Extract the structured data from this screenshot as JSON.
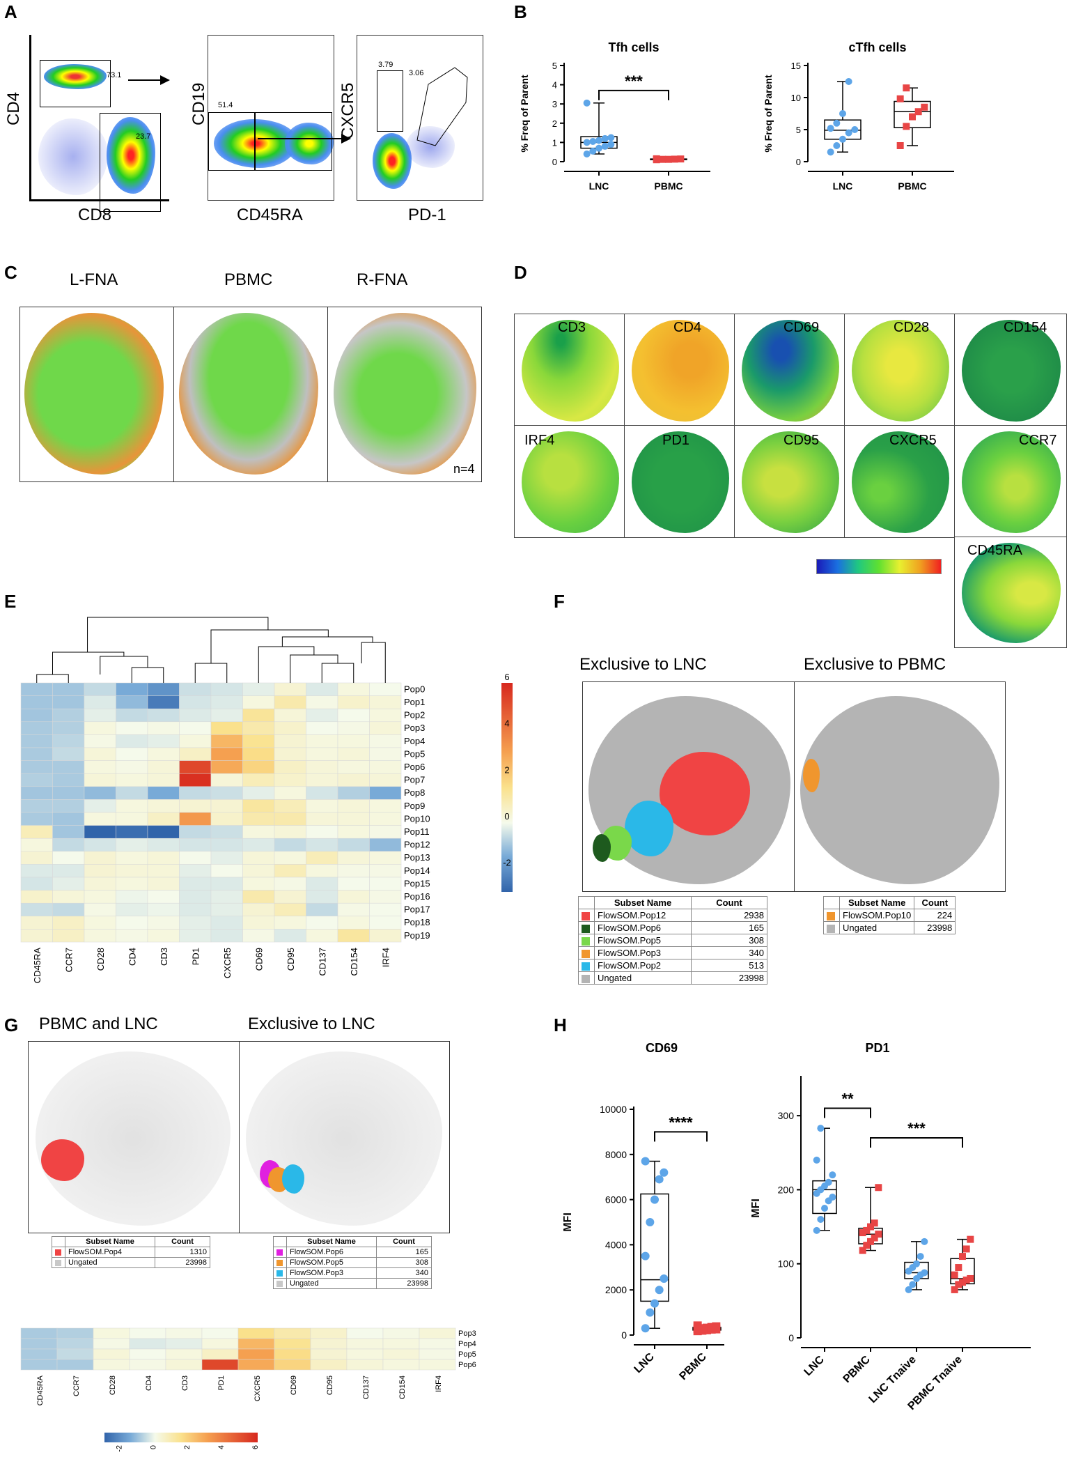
{
  "panels": {
    "A": "A",
    "B": "B",
    "C": "C",
    "D": "D",
    "E": "E",
    "F": "F",
    "G": "G",
    "H": "H"
  },
  "panelA": {
    "plots": [
      {
        "ylabel": "CD4",
        "xlabel": "CD8",
        "gates": [
          "73.1",
          "23.7"
        ]
      },
      {
        "ylabel": "CD19",
        "xlabel": "CD45RA",
        "gates": [
          "51.4"
        ]
      },
      {
        "ylabel": "CXCR5",
        "xlabel": "PD-1",
        "gates": [
          "3.79",
          "3.06"
        ]
      }
    ]
  },
  "panelC": {
    "columns": [
      "L-FNA",
      "PBMC",
      "R-FNA"
    ],
    "note": "n=4"
  },
  "panelD": {
    "markers": [
      "CD3",
      "CD4",
      "CD69",
      "CD28",
      "CD154",
      "IRF4",
      "PD1",
      "CD95",
      "CXCR5",
      "CCR7",
      "CD45RA"
    ]
  },
  "panelF": {
    "titles": [
      "Exclusive to LNC",
      "Exclusive to PBMC"
    ],
    "table_headers": [
      "Subset Name",
      "Count"
    ],
    "left_rows": [
      {
        "name": "FlowSOM.Pop12",
        "count": "2938",
        "color": "#f04444"
      },
      {
        "name": "FlowSOM.Pop6",
        "count": "165",
        "color": "#1e5a1e"
      },
      {
        "name": "FlowSOM.Pop5",
        "count": "308",
        "color": "#7ad84a"
      },
      {
        "name": "FlowSOM.Pop3",
        "count": "340",
        "color": "#f0962e"
      },
      {
        "name": "FlowSOM.Pop2",
        "count": "513",
        "color": "#2ab8e8"
      },
      {
        "name": "Ungated",
        "count": "23998",
        "color": "#b4b4b4"
      }
    ],
    "right_rows": [
      {
        "name": "FlowSOM.Pop10",
        "count": "224",
        "color": "#f0962e"
      },
      {
        "name": "Ungated",
        "count": "23998",
        "color": "#b4b4b4"
      }
    ]
  },
  "panelG": {
    "titles": [
      "PBMC and LNC",
      "Exclusive to LNC"
    ],
    "table_headers": [
      "Subset Name",
      "Count"
    ],
    "left_rows": [
      {
        "name": "FlowSOM.Pop4",
        "count": "1310",
        "color": "#f04444"
      },
      {
        "name": "Ungated",
        "count": "23998",
        "color": "#c8c8c8"
      }
    ],
    "right_rows": [
      {
        "name": "FlowSOM.Pop6",
        "count": "165",
        "color": "#e020e0"
      },
      {
        "name": "FlowSOM.Pop5",
        "count": "308",
        "color": "#f0962e"
      },
      {
        "name": "FlowSOM.Pop3",
        "count": "340",
        "color": "#2ab8e8"
      },
      {
        "name": "Ungated",
        "count": "23998",
        "color": "#c8c8c8"
      }
    ]
  },
  "chart_data": [
    {
      "id": "B1",
      "type": "box",
      "title": "Tfh cells",
      "ylabel": "% Freq of Parent",
      "ylim": [
        0,
        5
      ],
      "yticks": [
        0,
        1,
        2,
        3,
        4,
        5
      ],
      "categories": [
        "LNC",
        "PBMC"
      ],
      "points": [
        [
          0.4,
          0.55,
          0.7,
          0.8,
          0.9,
          1.0,
          1.05,
          1.1,
          1.2,
          1.25,
          3.05
        ],
        [
          0.1,
          0.12,
          0.12,
          0.13,
          0.14,
          0.15
        ]
      ],
      "boxes": [
        {
          "min": 0.4,
          "q1": 0.7,
          "median": 1.0,
          "q3": 1.3,
          "max": 3.05
        },
        {
          "min": 0.1,
          "q1": 0.12,
          "median": 0.13,
          "q3": 0.14,
          "max": 0.15
        }
      ],
      "colors": [
        "#5da5e8",
        "#e84545"
      ],
      "markers": [
        "circle",
        "square"
      ],
      "sig": [
        {
          "from": 0,
          "to": 1,
          "label": "***",
          "y": 3.7
        }
      ]
    },
    {
      "id": "B2",
      "type": "box",
      "title": "cTfh cells",
      "ylabel": "% Freq of Parent",
      "ylim": [
        0,
        15
      ],
      "yticks": [
        0,
        5,
        10,
        15
      ],
      "categories": [
        "LNC",
        "PBMC"
      ],
      "points": [
        [
          1.5,
          2.5,
          3.5,
          4.5,
          5.0,
          5.2,
          6.0,
          7.5,
          12.5
        ],
        [
          2.5,
          5.5,
          7.0,
          7.8,
          8.5,
          9.8,
          11.5
        ]
      ],
      "boxes": [
        {
          "min": 1.5,
          "q1": 3.5,
          "median": 4.9,
          "q3": 6.5,
          "max": 12.5
        },
        {
          "min": 2.5,
          "q1": 5.3,
          "median": 7.8,
          "q3": 9.4,
          "max": 11.5
        }
      ],
      "colors": [
        "#5da5e8",
        "#e84545"
      ],
      "markers": [
        "circle",
        "square"
      ],
      "sig": []
    },
    {
      "id": "H1",
      "type": "box",
      "title": "CD69",
      "ylabel": "MFI",
      "ylim": [
        0,
        10000
      ],
      "yticks": [
        0,
        2000,
        4000,
        6000,
        8000,
        10000
      ],
      "categories": [
        "LNC",
        "PBMC"
      ],
      "points": [
        [
          300,
          1000,
          1400,
          2000,
          2500,
          3500,
          5000,
          6000,
          6900,
          7200,
          7700
        ],
        [
          180,
          200,
          220,
          250,
          260,
          280,
          300,
          320,
          350,
          380,
          420
        ]
      ],
      "boxes": [
        {
          "min": 300,
          "q1": 1500,
          "median": 2450,
          "q3": 6250,
          "max": 7700
        },
        {
          "min": 150,
          "q1": 220,
          "median": 280,
          "q3": 340,
          "max": 430
        }
      ],
      "colors": [
        "#5da5e8",
        "#e84545"
      ],
      "markers": [
        "circle",
        "square"
      ],
      "sig": [
        {
          "from": 0,
          "to": 1,
          "label": "****",
          "y": 9000
        }
      ]
    },
    {
      "id": "H2",
      "type": "box",
      "title": "PD1",
      "ylabel": "MFI",
      "ylim": [
        0,
        350
      ],
      "yticks": [
        0,
        100,
        200,
        300
      ],
      "categories": [
        "LNC",
        "PBMC",
        "LNC Tnaive",
        "PBMC Tnaive"
      ],
      "points": [
        [
          145,
          160,
          175,
          185,
          190,
          195,
          200,
          205,
          210,
          220,
          240,
          283
        ],
        [
          118,
          125,
          130,
          135,
          140,
          142,
          145,
          150,
          155,
          203
        ],
        [
          65,
          72,
          80,
          85,
          88,
          90,
          95,
          100,
          110,
          130
        ],
        [
          65,
          72,
          75,
          78,
          80,
          85,
          95,
          110,
          120,
          133
        ]
      ],
      "boxes": [
        {
          "min": 145,
          "q1": 168,
          "median": 200,
          "q3": 212,
          "max": 283
        },
        {
          "min": 118,
          "q1": 127,
          "median": 140,
          "q3": 148,
          "max": 203
        },
        {
          "min": 65,
          "q1": 80,
          "median": 88,
          "q3": 102,
          "max": 130
        },
        {
          "min": 65,
          "q1": 73,
          "median": 80,
          "q3": 107,
          "max": 133
        }
      ],
      "colors": [
        "#5da5e8",
        "#e84545",
        "#5da5e8",
        "#e84545"
      ],
      "markers": [
        "circle",
        "square",
        "circle",
        "square"
      ],
      "sig": [
        {
          "from": 0,
          "to": 1,
          "label": "**",
          "y": 310
        },
        {
          "from": 1,
          "to": 3,
          "label": "***",
          "y": 270
        }
      ]
    },
    {
      "id": "E",
      "type": "heatmap",
      "columns": [
        "CD45RA",
        "CCR7",
        "CD28",
        "CD4",
        "CD3",
        "PD1",
        "CXCR5",
        "CD69",
        "CD95",
        "CD137",
        "CD154",
        "IRF4"
      ],
      "rows": [
        "Pop0",
        "Pop1",
        "Pop2",
        "Pop3",
        "Pop4",
        "Pop5",
        "Pop6",
        "Pop7",
        "Pop8",
        "Pop9",
        "Pop10",
        "Pop11",
        "Pop12",
        "Pop13",
        "Pop14",
        "Pop15",
        "Pop16",
        "Pop17",
        "Pop18",
        "Pop19"
      ],
      "values": [
        [
          -1.0,
          -1.0,
          -0.6,
          -1.5,
          -2.0,
          -0.5,
          -0.4,
          -0.2,
          0.4,
          -0.3,
          0.2,
          0.0
        ],
        [
          -1.0,
          -1.0,
          -0.3,
          -1.2,
          -2.5,
          -0.4,
          -0.3,
          0.2,
          1.0,
          0.1,
          0.5,
          0.3
        ],
        [
          -1.0,
          -0.8,
          -0.2,
          -0.6,
          -0.5,
          -0.3,
          -0.2,
          1.3,
          0.3,
          -0.2,
          0.0,
          0.2
        ],
        [
          -0.9,
          -0.8,
          0.2,
          0.0,
          0.1,
          0.0,
          1.5,
          1.0,
          0.5,
          0.0,
          0.1,
          0.3
        ],
        [
          -0.9,
          -0.7,
          0.1,
          -0.3,
          -0.2,
          0.2,
          2.5,
          1.4,
          0.4,
          0.2,
          0.2,
          0.1
        ],
        [
          -0.9,
          -0.6,
          0.3,
          0.0,
          0.2,
          0.6,
          3.0,
          1.6,
          0.4,
          0.2,
          0.3,
          0.1
        ],
        [
          -0.9,
          -0.9,
          0.2,
          0.1,
          0.3,
          5.2,
          2.8,
          1.8,
          0.6,
          0.3,
          0.2,
          0.2
        ],
        [
          -0.8,
          -0.9,
          0.3,
          0.2,
          0.3,
          5.8,
          0.3,
          0.8,
          0.5,
          0.3,
          0.4,
          0.3
        ],
        [
          -1.0,
          -1.0,
          -1.2,
          -0.6,
          -1.5,
          -0.6,
          -0.5,
          -0.2,
          0.2,
          -0.4,
          -0.8,
          -1.5
        ],
        [
          -0.8,
          -0.8,
          -0.2,
          0.2,
          0.3,
          0.4,
          0.4,
          1.2,
          0.8,
          0.2,
          0.3,
          0.2
        ],
        [
          -0.9,
          -1.0,
          0.2,
          0.2,
          0.6,
          3.2,
          0.5,
          1.0,
          1.0,
          0.3,
          0.3,
          0.2
        ],
        [
          0.8,
          -1.0,
          -3.2,
          -2.8,
          -3.2,
          -0.6,
          -0.5,
          0.2,
          0.3,
          0.0,
          0.2,
          0.1
        ],
        [
          0.2,
          -0.6,
          -0.4,
          -0.2,
          -0.3,
          -0.4,
          -0.4,
          -0.3,
          -0.6,
          -0.4,
          -0.6,
          -1.2
        ],
        [
          0.4,
          0.0,
          0.4,
          0.2,
          0.3,
          0.0,
          -0.2,
          0.3,
          0.2,
          0.8,
          0.3,
          0.2
        ],
        [
          -0.3,
          -0.3,
          0.4,
          0.3,
          0.3,
          -0.2,
          0.0,
          0.3,
          0.8,
          0.2,
          0.1,
          0.1
        ],
        [
          -0.4,
          -0.2,
          0.3,
          0.2,
          0.3,
          -0.3,
          -0.3,
          0.2,
          0.1,
          -0.3,
          0.0,
          0.0
        ],
        [
          0.5,
          0.3,
          0.2,
          -0.1,
          0.0,
          -0.3,
          -0.2,
          1.0,
          0.4,
          -0.3,
          0.3,
          0.1
        ],
        [
          -0.5,
          -0.6,
          0.1,
          -0.2,
          -0.1,
          -0.3,
          -0.2,
          0.4,
          0.8,
          -0.6,
          0.1,
          0.0
        ],
        [
          0.4,
          0.6,
          0.2,
          0.0,
          0.1,
          -0.2,
          -0.3,
          0.3,
          0.2,
          0.0,
          0.2,
          0.0
        ],
        [
          0.4,
          0.6,
          0.2,
          0.1,
          0.2,
          -0.2,
          -0.3,
          0.1,
          -0.3,
          0.2,
          1.2,
          0.4
        ]
      ],
      "colorbar": {
        "ticks": [
          6,
          4,
          2,
          0,
          -2
        ],
        "range": [
          -3,
          6
        ]
      }
    },
    {
      "id": "G-heat",
      "type": "heatmap",
      "columns": [
        "CD45RA",
        "CCR7",
        "CD28",
        "CD4",
        "CD3",
        "PD1",
        "CXCR5",
        "CD69",
        "CD95",
        "CD137",
        "CD154",
        "IRF4"
      ],
      "rows": [
        "Pop3",
        "Pop4",
        "Pop5",
        "Pop6"
      ],
      "values": [
        [
          -0.9,
          -0.8,
          0.2,
          0.0,
          0.1,
          0.0,
          1.5,
          1.0,
          0.5,
          0.0,
          0.1,
          0.3
        ],
        [
          -0.9,
          -0.7,
          0.1,
          -0.3,
          -0.2,
          0.2,
          2.5,
          1.4,
          0.4,
          0.2,
          0.2,
          0.1
        ],
        [
          -0.9,
          -0.6,
          0.3,
          0.0,
          0.2,
          0.6,
          3.0,
          1.6,
          0.4,
          0.2,
          0.3,
          0.1
        ],
        [
          -0.9,
          -0.9,
          0.2,
          0.1,
          0.3,
          5.2,
          2.8,
          1.8,
          0.6,
          0.3,
          0.2,
          0.2
        ]
      ],
      "colorbar": {
        "ticks": [
          -2,
          0,
          2,
          4,
          6
        ],
        "range": [
          -3,
          6
        ]
      }
    }
  ]
}
